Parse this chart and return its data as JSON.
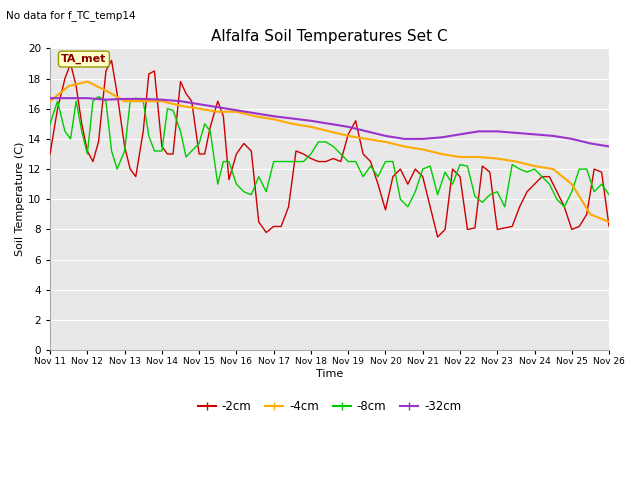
{
  "title": "Alfalfa Soil Temperatures Set C",
  "subtitle": "No data for f_TC_temp14",
  "xlabel": "Time",
  "ylabel": "Soil Temperature (C)",
  "ylim": [
    0,
    20
  ],
  "yticks": [
    0,
    2,
    4,
    6,
    8,
    10,
    12,
    14,
    16,
    18,
    20
  ],
  "xtick_labels": [
    "Nov 11",
    "Nov 12",
    "Nov 13",
    "Nov 14",
    "Nov 15",
    "Nov 16",
    "Nov 17",
    "Nov 18",
    "Nov 19",
    "Nov 20",
    "Nov 21",
    "Nov 22",
    "Nov 23",
    "Nov 24",
    "Nov 25",
    "Nov 26"
  ],
  "fig_bg_color": "#ffffff",
  "plot_bg_color": "#e8e8e8",
  "grid_color": "#ffffff",
  "legend_label": "TA_met",
  "neg2cm_color": "#cc0000",
  "neg4cm_color": "#ffaa00",
  "neg8cm_color": "#00cc00",
  "neg32cm_color": "#9933cc",
  "neg2cm_x": [
    0,
    0.2,
    0.4,
    0.55,
    0.7,
    0.85,
    1.0,
    1.15,
    1.3,
    1.5,
    1.65,
    1.8,
    2.0,
    2.15,
    2.3,
    2.5,
    2.65,
    2.8,
    3.0,
    3.15,
    3.3,
    3.5,
    3.65,
    3.8,
    4.0,
    4.15,
    4.3,
    4.5,
    4.65,
    4.8,
    5.0,
    5.2,
    5.4,
    5.6,
    5.8,
    6.0,
    6.2,
    6.4,
    6.6,
    6.8,
    7.0,
    7.2,
    7.4,
    7.6,
    7.8,
    8.0,
    8.2,
    8.4,
    8.6,
    8.8,
    9.0,
    9.2,
    9.4,
    9.6,
    9.8,
    10.0,
    10.2,
    10.4,
    10.6,
    10.8,
    11.0,
    11.2,
    11.4,
    11.6,
    11.8,
    12.0,
    12.2,
    12.4,
    12.6,
    12.8,
    13.0,
    13.2,
    13.4,
    13.6,
    13.8,
    14.0,
    14.2,
    14.4,
    14.6,
    14.8,
    15.0
  ],
  "neg2cm_y": [
    13.0,
    16.0,
    18.0,
    19.0,
    17.5,
    15.0,
    13.2,
    12.5,
    13.8,
    18.5,
    19.2,
    17.0,
    13.5,
    12.0,
    11.5,
    14.5,
    18.3,
    18.5,
    13.5,
    13.0,
    13.0,
    17.8,
    17.0,
    16.5,
    13.0,
    13.0,
    14.8,
    16.5,
    15.5,
    11.3,
    13.0,
    13.7,
    13.2,
    8.5,
    7.8,
    8.2,
    8.2,
    9.5,
    13.2,
    13.0,
    12.7,
    12.5,
    12.5,
    12.7,
    12.5,
    14.3,
    15.2,
    13.0,
    12.5,
    11.0,
    9.3,
    11.5,
    12.0,
    11.0,
    12.0,
    11.5,
    9.5,
    7.5,
    8.0,
    12.0,
    11.5,
    8.0,
    8.1,
    12.2,
    11.8,
    8.0,
    8.1,
    8.2,
    9.5,
    10.5,
    11.0,
    11.5,
    11.5,
    10.5,
    9.5,
    8.0,
    8.2,
    9.0,
    12.0,
    11.8,
    8.2
  ],
  "neg4cm_x": [
    0,
    0.5,
    1.0,
    1.5,
    2.0,
    2.5,
    3.0,
    3.5,
    4.0,
    4.5,
    5.0,
    5.5,
    6.0,
    6.5,
    7.0,
    7.5,
    8.0,
    8.5,
    9.0,
    9.5,
    10.0,
    10.5,
    11.0,
    11.5,
    12.0,
    12.5,
    13.0,
    13.5,
    14.0,
    14.5,
    15.0
  ],
  "neg4cm_y": [
    16.5,
    17.5,
    17.8,
    17.2,
    16.5,
    16.5,
    16.5,
    16.2,
    16.0,
    15.8,
    15.8,
    15.5,
    15.3,
    15.0,
    14.8,
    14.5,
    14.2,
    14.0,
    13.8,
    13.5,
    13.3,
    13.0,
    12.8,
    12.8,
    12.7,
    12.5,
    12.2,
    12.0,
    11.0,
    9.0,
    8.5
  ],
  "neg8cm_x": [
    0,
    0.2,
    0.4,
    0.55,
    0.7,
    0.85,
    1.0,
    1.15,
    1.3,
    1.5,
    1.65,
    1.8,
    2.0,
    2.15,
    2.3,
    2.5,
    2.65,
    2.8,
    3.0,
    3.15,
    3.3,
    3.5,
    3.65,
    3.8,
    4.0,
    4.15,
    4.3,
    4.5,
    4.65,
    4.8,
    5.0,
    5.2,
    5.4,
    5.6,
    5.8,
    6.0,
    6.2,
    6.4,
    6.6,
    6.8,
    7.0,
    7.2,
    7.4,
    7.6,
    7.8,
    8.0,
    8.2,
    8.4,
    8.6,
    8.8,
    9.0,
    9.2,
    9.4,
    9.6,
    9.8,
    10.0,
    10.2,
    10.4,
    10.6,
    10.8,
    11.0,
    11.2,
    11.4,
    11.6,
    11.8,
    12.0,
    12.2,
    12.4,
    12.6,
    12.8,
    13.0,
    13.2,
    13.4,
    13.6,
    13.8,
    14.0,
    14.2,
    14.4,
    14.6,
    14.8,
    15.0
  ],
  "neg8cm_y": [
    15.0,
    16.5,
    14.5,
    14.0,
    16.5,
    14.5,
    13.0,
    16.5,
    16.8,
    16.5,
    13.2,
    12.0,
    13.2,
    16.5,
    16.7,
    16.5,
    14.2,
    13.2,
    13.2,
    16.0,
    15.9,
    14.5,
    12.8,
    13.2,
    13.7,
    15.0,
    14.5,
    11.0,
    12.5,
    12.5,
    11.0,
    10.5,
    10.3,
    11.5,
    10.5,
    12.5,
    12.5,
    12.5,
    12.5,
    12.5,
    13.0,
    13.8,
    13.8,
    13.5,
    13.0,
    12.5,
    12.5,
    11.5,
    12.2,
    11.5,
    12.5,
    12.5,
    10.0,
    9.5,
    10.5,
    12.0,
    12.2,
    10.3,
    11.8,
    11.0,
    12.3,
    12.2,
    10.2,
    9.8,
    10.3,
    10.5,
    9.5,
    12.3,
    12.0,
    11.8,
    12.0,
    11.5,
    11.0,
    10.0,
    9.5,
    10.5,
    12.0,
    12.0,
    10.5,
    11.0,
    10.3
  ],
  "neg32cm_x": [
    0,
    0.5,
    1.0,
    1.5,
    2.0,
    2.5,
    3.0,
    3.5,
    4.0,
    4.5,
    5.0,
    5.5,
    6.0,
    6.5,
    7.0,
    7.5,
    8.0,
    8.5,
    9.0,
    9.5,
    10.0,
    10.5,
    11.0,
    11.5,
    12.0,
    12.5,
    13.0,
    13.5,
    14.0,
    14.5,
    15.0
  ],
  "neg32cm_y": [
    16.7,
    16.7,
    16.7,
    16.6,
    16.65,
    16.65,
    16.6,
    16.5,
    16.3,
    16.1,
    15.9,
    15.7,
    15.5,
    15.35,
    15.2,
    15.0,
    14.8,
    14.5,
    14.2,
    14.0,
    14.0,
    14.1,
    14.3,
    14.5,
    14.5,
    14.4,
    14.3,
    14.2,
    14.0,
    13.7,
    13.5
  ]
}
